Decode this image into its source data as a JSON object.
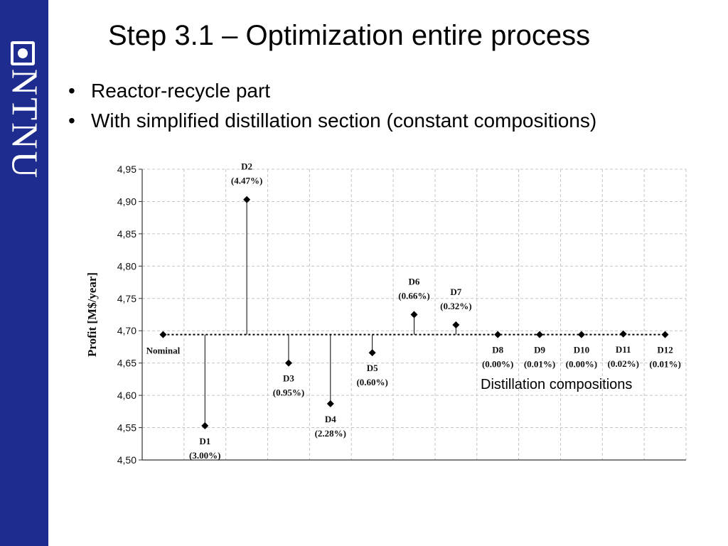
{
  "slide": {
    "title": "Step 3.1 – Optimization entire process",
    "bullets": [
      "Reactor-recycle part",
      "With simplified distillation section (constant compositions)"
    ],
    "caption": "Distillation compositions"
  },
  "sidebar": {
    "logo_text": "NTNU",
    "color": "#1f2c8f"
  },
  "chart_data": {
    "type": "scatter",
    "title": "",
    "xlabel": "",
    "ylabel": "Profit [M$/year]",
    "ylim": [
      4.5,
      4.95
    ],
    "yticks": [
      "4,50",
      "4,55",
      "4,60",
      "4,65",
      "4,70",
      "4,75",
      "4,80",
      "4,85",
      "4,90",
      "4,95"
    ],
    "grid": true,
    "baseline": 4.694,
    "points": [
      {
        "name": "Nominal",
        "pct": "",
        "value": 4.694,
        "label_pos": "below"
      },
      {
        "name": "D1",
        "pct": "(3.00%)",
        "value": 4.553,
        "label_pos": "below"
      },
      {
        "name": "D2",
        "pct": "(4.47%)",
        "value": 4.903,
        "label_pos": "above"
      },
      {
        "name": "D3",
        "pct": "(0.95%)",
        "value": 4.65,
        "label_pos": "below"
      },
      {
        "name": "D4",
        "pct": "(2.28%)",
        "value": 4.587,
        "label_pos": "below"
      },
      {
        "name": "D5",
        "pct": "(0.60%)",
        "value": 4.666,
        "label_pos": "below"
      },
      {
        "name": "D6",
        "pct": "(0.66%)",
        "value": 4.725,
        "label_pos": "above"
      },
      {
        "name": "D7",
        "pct": "(0.32%)",
        "value": 4.709,
        "label_pos": "above"
      },
      {
        "name": "D8",
        "pct": "(0.00%)",
        "value": 4.694,
        "label_pos": "below"
      },
      {
        "name": "D9",
        "pct": "(0.01%)",
        "value": 4.694,
        "label_pos": "below"
      },
      {
        "name": "D10",
        "pct": "(0.00%)",
        "value": 4.694,
        "label_pos": "below"
      },
      {
        "name": "D11",
        "pct": "(0.02%)",
        "value": 4.695,
        "label_pos": "below"
      },
      {
        "name": "D12",
        "pct": "(0.01%)",
        "value": 4.694,
        "label_pos": "below"
      }
    ]
  }
}
